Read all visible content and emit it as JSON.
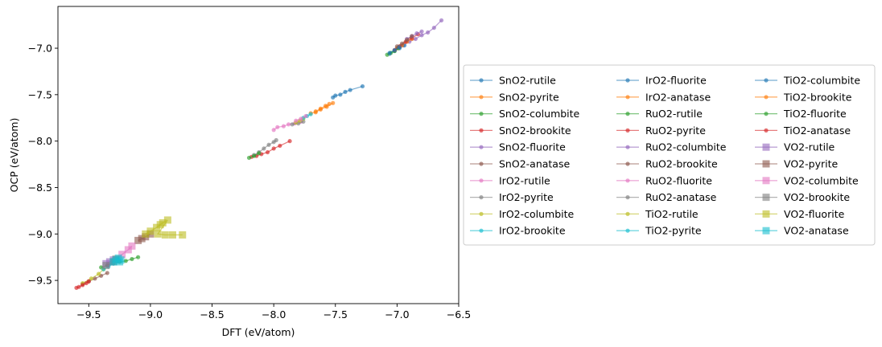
{
  "chart_data": {
    "type": "scatter",
    "title": "",
    "xlabel": "DFT (eV/atom)",
    "ylabel": "OCP (eV/atom)",
    "xlim": [
      -9.75,
      -6.5
    ],
    "ylim": [
      -9.75,
      -6.55
    ],
    "xticks": [
      -9.5,
      -9.0,
      -8.5,
      -8.0,
      -7.5,
      -7.0,
      -6.5
    ],
    "xtick_labels": [
      "−9.5",
      "−9.0",
      "−8.5",
      "−8.0",
      "−7.5",
      "−7.0",
      "−6.5"
    ],
    "yticks": [
      -7.0,
      -7.5,
      -8.0,
      -8.5,
      -9.0,
      -9.5
    ],
    "ytick_labels": [
      "−7.0",
      "−7.5",
      "−8.0",
      "−8.5",
      "−9.0",
      "−9.5"
    ],
    "grid": false,
    "legend_position": "right",
    "legend_columns": 3,
    "series": [
      {
        "name": "SnO2-rutile",
        "color": "#1f77b4",
        "marker": "circle",
        "x": [
          -7.52,
          -7.5,
          -7.46,
          -7.42,
          -7.38,
          -7.28
        ],
        "y": [
          -7.53,
          -7.51,
          -7.5,
          -7.47,
          -7.45,
          -7.41
        ]
      },
      {
        "name": "SnO2-pyrite",
        "color": "#ff7f0e",
        "marker": "circle",
        "x": [
          -7.7,
          -7.66,
          -7.62,
          -7.57,
          -7.52
        ],
        "y": [
          -7.7,
          -7.69,
          -7.66,
          -7.63,
          -7.59
        ]
      },
      {
        "name": "SnO2-columbite",
        "color": "#2ca02c",
        "marker": "circle",
        "x": [
          -9.4,
          -9.35,
          -9.3,
          -9.25,
          -9.2,
          -9.15,
          -9.1
        ],
        "y": [
          -9.36,
          -9.34,
          -9.31,
          -9.3,
          -9.29,
          -9.27,
          -9.25
        ]
      },
      {
        "name": "SnO2-brookite",
        "color": "#d62728",
        "marker": "circle",
        "x": [
          -8.18,
          -8.14,
          -8.1,
          -8.05,
          -8.0,
          -7.95,
          -7.87
        ],
        "y": [
          -8.17,
          -8.16,
          -8.14,
          -8.12,
          -8.08,
          -8.05,
          -8.0
        ]
      },
      {
        "name": "SnO2-fluorite",
        "color": "#9467bd",
        "marker": "circle",
        "x": [
          -7.0,
          -6.95,
          -6.9,
          -6.85,
          -6.8,
          -6.75,
          -6.7,
          -6.64
        ],
        "y": [
          -7.0,
          -6.97,
          -6.93,
          -6.9,
          -6.86,
          -6.83,
          -6.78,
          -6.7
        ]
      },
      {
        "name": "SnO2-anatase",
        "color": "#8c564b",
        "marker": "circle",
        "x": [
          -9.55,
          -9.5,
          -9.45,
          -9.4,
          -9.35
        ],
        "y": [
          -9.54,
          -9.51,
          -9.48,
          -9.45,
          -9.42
        ]
      },
      {
        "name": "IrO2-rutile",
        "color": "#e377c2",
        "marker": "circle",
        "x": [
          -8.0,
          -7.97,
          -7.92,
          -7.88,
          -7.83,
          -7.78
        ],
        "y": [
          -7.88,
          -7.85,
          -7.84,
          -7.82,
          -7.81,
          -7.79
        ]
      },
      {
        "name": "IrO2-pyrite",
        "color": "#7f7f7f",
        "marker": "circle",
        "x": [
          -7.85,
          -7.8,
          -7.76
        ],
        "y": [
          -7.82,
          -7.81,
          -7.79
        ]
      },
      {
        "name": "IrO2-columbite",
        "color": "#bcbd22",
        "marker": "circle",
        "x": [
          -7.82,
          -7.79,
          -7.76
        ],
        "y": [
          -7.8,
          -7.78,
          -7.76
        ]
      },
      {
        "name": "IrO2-brookite",
        "color": "#17becf",
        "marker": "circle",
        "x": [
          -7.76,
          -7.73,
          -7.7
        ],
        "y": [
          -7.75,
          -7.73,
          -7.71
        ]
      },
      {
        "name": "IrO2-fluorite",
        "color": "#1f77b4",
        "marker": "circle",
        "x": [
          -7.06,
          -7.02,
          -6.98,
          -6.94
        ],
        "y": [
          -7.06,
          -7.03,
          -7.0,
          -6.97
        ]
      },
      {
        "name": "IrO2-anatase",
        "color": "#ff7f0e",
        "marker": "circle",
        "x": [
          -7.0,
          -6.96,
          -6.92,
          -6.88
        ],
        "y": [
          -7.0,
          -6.97,
          -6.93,
          -6.9
        ]
      },
      {
        "name": "RuO2-rutile",
        "color": "#2ca02c",
        "marker": "circle",
        "x": [
          -7.08,
          -7.05,
          -7.02,
          -6.99
        ],
        "y": [
          -7.07,
          -7.05,
          -7.03,
          -7.0
        ]
      },
      {
        "name": "RuO2-pyrite",
        "color": "#d62728",
        "marker": "circle",
        "x": [
          -7.02,
          -6.98,
          -6.93,
          -6.88,
          -6.83
        ],
        "y": [
          -7.02,
          -6.98,
          -6.93,
          -6.89,
          -6.85
        ]
      },
      {
        "name": "RuO2-columbite",
        "color": "#9467bd",
        "marker": "circle",
        "x": [
          -6.92,
          -6.88,
          -6.84,
          -6.8
        ],
        "y": [
          -6.9,
          -6.87,
          -6.84,
          -6.82
        ]
      },
      {
        "name": "RuO2-brookite",
        "color": "#8c564b",
        "marker": "circle",
        "x": [
          -7.0,
          -6.96,
          -6.92,
          -6.88
        ],
        "y": [
          -6.98,
          -6.95,
          -6.91,
          -6.87
        ]
      },
      {
        "name": "RuO2-fluorite",
        "color": "#e377c2",
        "marker": "circle",
        "x": [
          -7.82,
          -7.78,
          -7.74
        ],
        "y": [
          -7.78,
          -7.76,
          -7.73
        ]
      },
      {
        "name": "RuO2-anatase",
        "color": "#7f7f7f",
        "marker": "circle",
        "x": [
          -8.16,
          -8.12,
          -8.08,
          -8.04,
          -8.0,
          -7.98
        ],
        "y": [
          -8.15,
          -8.12,
          -8.08,
          -8.04,
          -8.01,
          -7.99
        ]
      },
      {
        "name": "TiO2-rutile",
        "color": "#bcbd22",
        "marker": "circle",
        "x": [
          -9.55,
          -9.48,
          -9.42,
          -9.38
        ],
        "y": [
          -9.53,
          -9.48,
          -9.43,
          -9.38
        ]
      },
      {
        "name": "TiO2-pyrite",
        "color": "#17becf",
        "marker": "circle",
        "x": [
          -9.38,
          -9.34,
          -9.3,
          -9.26
        ],
        "y": [
          -9.38,
          -9.35,
          -9.32,
          -9.28
        ]
      },
      {
        "name": "TiO2-columbite",
        "color": "#1f77b4",
        "marker": "circle",
        "x": [
          -7.06,
          -7.02,
          -6.98
        ],
        "y": [
          -7.05,
          -7.02,
          -6.99
        ]
      },
      {
        "name": "TiO2-brookite",
        "color": "#ff7f0e",
        "marker": "circle",
        "x": [
          -7.66,
          -7.62,
          -7.58,
          -7.55
        ],
        "y": [
          -7.68,
          -7.65,
          -7.62,
          -7.6
        ]
      },
      {
        "name": "TiO2-fluorite",
        "color": "#2ca02c",
        "marker": "circle",
        "x": [
          -8.2,
          -8.16,
          -8.12
        ],
        "y": [
          -8.18,
          -8.16,
          -8.13
        ]
      },
      {
        "name": "TiO2-anatase",
        "color": "#d62728",
        "marker": "circle",
        "x": [
          -9.6,
          -9.58,
          -9.55,
          -9.52,
          -9.5
        ],
        "y": [
          -9.58,
          -9.57,
          -9.55,
          -9.53,
          -9.51
        ]
      },
      {
        "name": "VO2-rutile",
        "color": "#9467bd",
        "marker": "square",
        "x": [
          -9.36,
          -9.33,
          -9.3
        ],
        "y": [
          -9.32,
          -9.3,
          -9.28
        ]
      },
      {
        "name": "VO2-pyrite",
        "color": "#8c564b",
        "marker": "square",
        "x": [
          -9.1,
          -9.07,
          -9.04,
          -9.0
        ],
        "y": [
          -9.07,
          -9.05,
          -9.03,
          -9.0
        ]
      },
      {
        "name": "VO2-columbite",
        "color": "#e377c2",
        "marker": "square",
        "x": [
          -9.28,
          -9.23,
          -9.18,
          -9.15
        ],
        "y": [
          -9.28,
          -9.22,
          -9.17,
          -9.13
        ]
      },
      {
        "name": "VO2-brookite",
        "color": "#7f7f7f",
        "marker": "square",
        "x": [
          -9.36,
          -9.3,
          -9.28
        ],
        "y": [
          -9.34,
          -9.3,
          -9.27
        ]
      },
      {
        "name": "VO2-fluorite",
        "color": "#bcbd22",
        "marker": "square",
        "x": [
          -9.04,
          -9.0,
          -8.95,
          -8.92,
          -8.9,
          -8.86,
          -8.94,
          -8.88,
          -8.82,
          -8.74
        ],
        "y": [
          -9.0,
          -8.97,
          -8.93,
          -8.9,
          -8.88,
          -8.85,
          -9.0,
          -9.01,
          -9.01,
          -9.01
        ]
      },
      {
        "name": "VO2-anatase",
        "color": "#17becf",
        "marker": "square",
        "x": [
          -9.3,
          -9.28,
          -9.26,
          -9.24,
          -9.25
        ],
        "y": [
          -9.3,
          -9.28,
          -9.26,
          -9.28,
          -9.3
        ]
      }
    ]
  }
}
